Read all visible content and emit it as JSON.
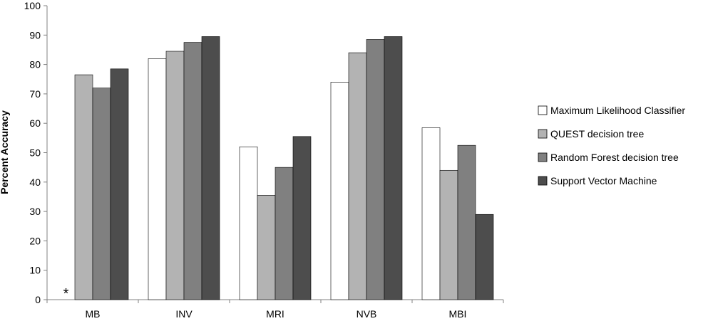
{
  "chart_data": {
    "type": "bar",
    "title": "",
    "xlabel": "",
    "ylabel": "Percent Accuracy",
    "ylim": [
      0,
      100
    ],
    "yticks": [
      0,
      10,
      20,
      30,
      40,
      50,
      60,
      70,
      80,
      90,
      100
    ],
    "grid": false,
    "legend_position": "right",
    "categories": [
      "MB",
      "INV",
      "MRI",
      "NVB",
      "MBI"
    ],
    "series": [
      {
        "name": "Maximum Likelihood Classifier",
        "color": "#ffffff",
        "values": [
          null,
          82,
          52,
          74,
          58.5
        ]
      },
      {
        "name": "QUEST decision tree",
        "color": "#b3b3b3",
        "values": [
          76.5,
          84.5,
          35.5,
          84,
          44
        ]
      },
      {
        "name": "Random Forest decision tree",
        "color": "#808080",
        "values": [
          72,
          87.5,
          45,
          88.5,
          52.5
        ]
      },
      {
        "name": "Support Vector Machine",
        "color": "#4d4d4d",
        "values": [
          78.5,
          89.5,
          55.5,
          89.5,
          29
        ]
      }
    ],
    "annotations": [
      {
        "text": "*",
        "category": "MB",
        "series": "Maximum Likelihood Classifier"
      }
    ]
  }
}
